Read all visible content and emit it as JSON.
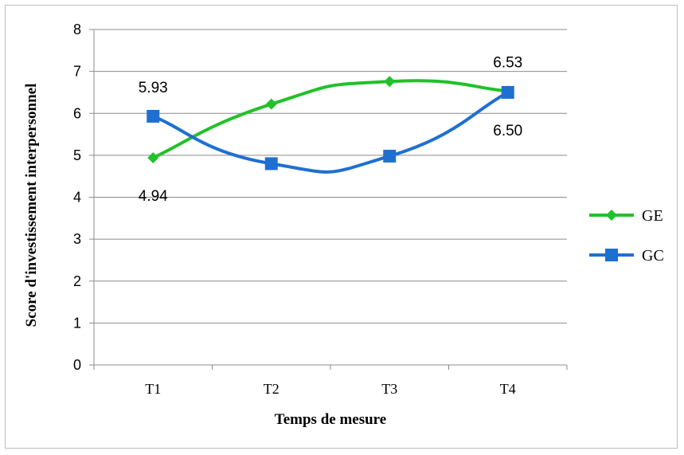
{
  "chart_data": {
    "type": "line",
    "title": "",
    "xlabel": "Temps de mesure",
    "ylabel": "Score d'investissement interpersonnel",
    "categories": [
      "T1",
      "T2",
      "T3",
      "T4"
    ],
    "ylim": [
      0,
      8
    ],
    "yticks": [
      "0",
      "1",
      "2",
      "3",
      "4",
      "5",
      "6",
      "7",
      "8"
    ],
    "grid": true,
    "smooth": true,
    "legend_position": "right",
    "series": [
      {
        "name": "GE",
        "values": [
          4.94,
          6.22,
          6.76,
          6.53
        ],
        "color": "#22c12a",
        "marker": "diamond"
      },
      {
        "name": "GC",
        "values": [
          5.93,
          4.8,
          4.98,
          6.5
        ],
        "color": "#1f6fd1",
        "marker": "square"
      }
    ],
    "annotations": [
      {
        "text": "4.94",
        "series": "GE",
        "category": "T1",
        "position": "below"
      },
      {
        "text": "5.93",
        "series": "GC",
        "category": "T1",
        "position": "above"
      },
      {
        "text": "6.53",
        "series": "GE",
        "category": "T4",
        "position": "above"
      },
      {
        "text": "6.50",
        "series": "GC",
        "category": "T4",
        "position": "below"
      }
    ]
  }
}
